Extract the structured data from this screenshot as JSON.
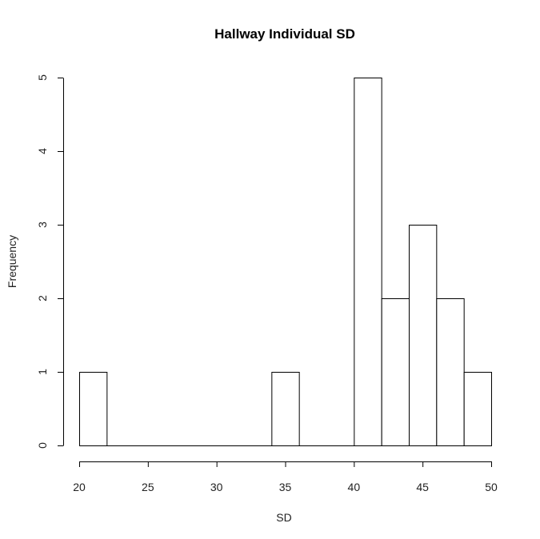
{
  "chart_data": {
    "type": "bar",
    "title": "Hallway Individual SD",
    "xlabel": "SD",
    "ylabel": "Frequency",
    "bins": [
      {
        "x0": 20,
        "x1": 22,
        "count": 1
      },
      {
        "x0": 22,
        "x1": 24,
        "count": 0
      },
      {
        "x0": 24,
        "x1": 26,
        "count": 0
      },
      {
        "x0": 26,
        "x1": 28,
        "count": 0
      },
      {
        "x0": 28,
        "x1": 30,
        "count": 0
      },
      {
        "x0": 30,
        "x1": 32,
        "count": 0
      },
      {
        "x0": 32,
        "x1": 34,
        "count": 0
      },
      {
        "x0": 34,
        "x1": 36,
        "count": 1
      },
      {
        "x0": 36,
        "x1": 38,
        "count": 0
      },
      {
        "x0": 38,
        "x1": 40,
        "count": 0
      },
      {
        "x0": 40,
        "x1": 42,
        "count": 5
      },
      {
        "x0": 42,
        "x1": 44,
        "count": 2
      },
      {
        "x0": 44,
        "x1": 46,
        "count": 3
      },
      {
        "x0": 46,
        "x1": 48,
        "count": 2
      },
      {
        "x0": 48,
        "x1": 50,
        "count": 1
      }
    ],
    "x_ticks": [
      "20",
      "25",
      "30",
      "35",
      "40",
      "45",
      "50"
    ],
    "y_ticks": [
      "0",
      "1",
      "2",
      "3",
      "4",
      "5"
    ],
    "xlim": [
      20,
      50
    ],
    "ylim": [
      0,
      5
    ],
    "grid": false,
    "legend": "none"
  }
}
